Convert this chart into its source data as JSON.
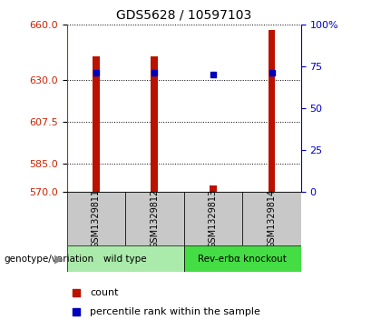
{
  "title": "GDS5628 / 10597103",
  "samples": [
    "GSM1329811",
    "GSM1329812",
    "GSM1329813",
    "GSM1329814"
  ],
  "count_values": [
    643,
    643,
    573,
    657
  ],
  "percentile_values": [
    634,
    634,
    633,
    634
  ],
  "y_min": 570,
  "y_max": 660,
  "y_ticks_left": [
    570,
    585,
    607.5,
    630,
    660
  ],
  "y_ticks_right_pct": [
    0,
    25,
    50,
    75,
    100
  ],
  "groups": [
    {
      "label": "wild type",
      "sample_indices": [
        0,
        1
      ],
      "color": "#aaeaaa"
    },
    {
      "label": "Rev-erbα knockout",
      "sample_indices": [
        2,
        3
      ],
      "color": "#44dd44"
    }
  ],
  "bar_color": "#bb1100",
  "dot_color": "#0000bb",
  "bar_width": 0.12,
  "dot_size": 22,
  "bg_label": "#c8c8c8",
  "left_axis_color": "#cc2200",
  "right_axis_color": "#0000cc",
  "genotype_label": "genotype/variation",
  "legend_count": "count",
  "legend_percentile": "percentile rank within the sample",
  "x_positions": [
    0.5,
    1.5,
    2.5,
    3.5
  ]
}
